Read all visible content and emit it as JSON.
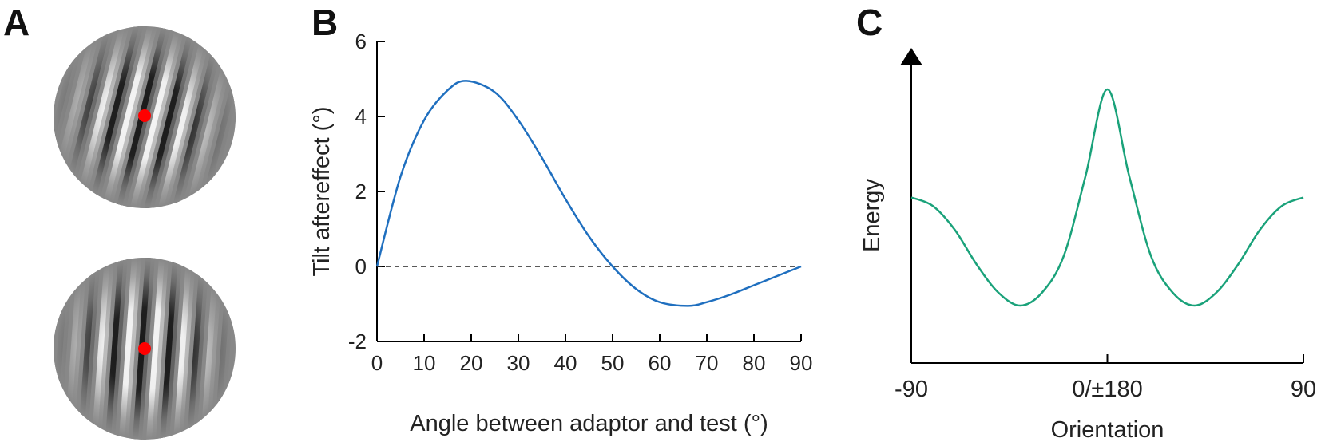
{
  "panels": {
    "a": {
      "letter": "A"
    },
    "b": {
      "letter": "B"
    },
    "c": {
      "letter": "C"
    }
  },
  "colors": {
    "curve_b": "#1f6fbf",
    "curve_c": "#1aa27a",
    "fixation_dot": "#ff0000",
    "axis": "#000000"
  },
  "chart_data": [
    {
      "panel": "B",
      "type": "line",
      "title": "",
      "xlabel": "Angle between adaptor and test (°)",
      "ylabel": "Tilt aftereffect (°)",
      "xlim": [
        0,
        90
      ],
      "ylim": [
        -2,
        6
      ],
      "xticks": [
        0,
        10,
        20,
        30,
        40,
        50,
        60,
        70,
        80,
        90
      ],
      "yticks": [
        -2,
        0,
        2,
        4,
        6
      ],
      "reference_line": {
        "y": 0,
        "style": "dashed"
      },
      "grid": false,
      "series": [
        {
          "x": [
            0,
            5,
            10,
            15,
            19,
            25,
            30,
            35,
            40,
            45,
            50,
            55,
            60,
            66,
            70,
            75,
            80,
            85,
            90
          ],
          "values": [
            0,
            2.4,
            3.9,
            4.7,
            4.95,
            4.65,
            3.9,
            2.9,
            1.8,
            0.8,
            0,
            -0.6,
            -0.95,
            -1.05,
            -0.95,
            -0.75,
            -0.5,
            -0.25,
            0
          ]
        }
      ]
    },
    {
      "panel": "C",
      "type": "line",
      "title": "",
      "xlabel": "Orientation",
      "ylabel": "Energy",
      "xlim": [
        -90,
        90
      ],
      "xtick_labels": [
        "-90",
        "0/±180",
        "90"
      ],
      "xtick_positions": [
        -90,
        0,
        90
      ],
      "y_axis_arrow": true,
      "grid": false,
      "series": [
        {
          "x": [
            -90,
            -80,
            -70,
            -60,
            -50,
            -40,
            -30,
            -20,
            -10,
            0,
            10,
            20,
            30,
            40,
            50,
            60,
            70,
            80,
            90
          ],
          "values": [
            0.5,
            0.46,
            0.35,
            0.19,
            0.06,
            0.0,
            0.06,
            0.23,
            0.6,
            1.0,
            0.6,
            0.23,
            0.06,
            0.0,
            0.06,
            0.19,
            0.35,
            0.46,
            0.5
          ]
        }
      ]
    }
  ]
}
